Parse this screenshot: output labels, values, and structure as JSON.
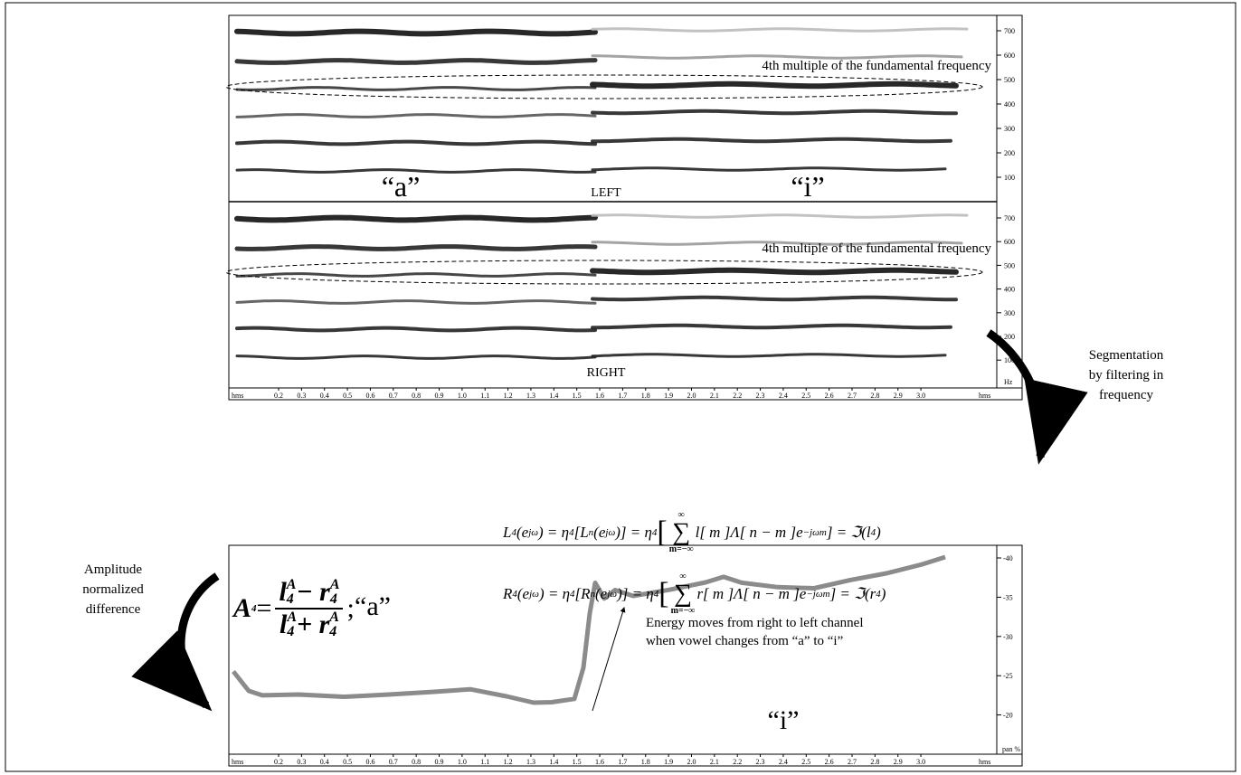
{
  "spectrogram": {
    "left_label": "LEFT",
    "right_label": "RIGHT",
    "vowel_a": "“a”",
    "vowel_i": "“i”",
    "annotation": "4th multiple of the fundamental frequency",
    "y_ticks": [
      "700",
      "600",
      "500",
      "400",
      "300",
      "200",
      "100"
    ],
    "y_unit": "Hz"
  },
  "time_axis": {
    "unit": "hms",
    "ticks": [
      "0.2",
      "0.3",
      "0.4",
      "0.5",
      "0.6",
      "0.7",
      "0.8",
      "0.9",
      "1.0",
      "1.1",
      "1.2",
      "1.3",
      "1.4",
      "1.5",
      "1.6",
      "1.7",
      "1.8",
      "1.9",
      "2.0",
      "2.1",
      "2.2",
      "2.3",
      "2.4",
      "2.5",
      "2.6",
      "2.7",
      "2.8",
      "2.9",
      "3.0"
    ]
  },
  "side_labels": {
    "segmentation": [
      "Segmentation",
      "by filtering in",
      "frequency"
    ],
    "amplitude": [
      "Amplitude",
      "normalized",
      "difference"
    ]
  },
  "equations": {
    "A": [
      "A",
      "4",
      " = ",
      "l",
      "A",
      "4",
      " − r",
      "A",
      "4",
      "l",
      "A",
      "4",
      " + r",
      "A",
      "4",
      " ;"
    ],
    "L": [
      "L",
      "4",
      "(e",
      "jω",
      ") = η",
      "4",
      "[L",
      "n",
      "(e",
      "jω",
      ")] = η",
      "4",
      "[",
      "∞",
      "∑",
      "m=−∞",
      "l[ m ]Λ[ n − m ]e",
      "−jωm",
      "] = ℑ(l",
      "4",
      ")"
    ],
    "R": [
      "R",
      "4",
      "(e",
      "jω",
      ") = η",
      "4",
      "[R",
      "n",
      "(e",
      "jω",
      ")] = η",
      "4",
      "[",
      "∞",
      "∑",
      "m=−∞",
      "r[ m ]Λ[ n − m ]e",
      "−jωm",
      "] = ℑ(r",
      "4",
      ")"
    ]
  },
  "pan_chart": {
    "vowel_a": "“a”",
    "vowel_i": "“i”",
    "annotation": [
      "Energy moves from right to left channel",
      "when vowel changes from “a” to “i”"
    ],
    "y_ticks": [
      "-40",
      "-35",
      "-30",
      "-25",
      "-20"
    ],
    "y_unit": "pan %"
  }
}
